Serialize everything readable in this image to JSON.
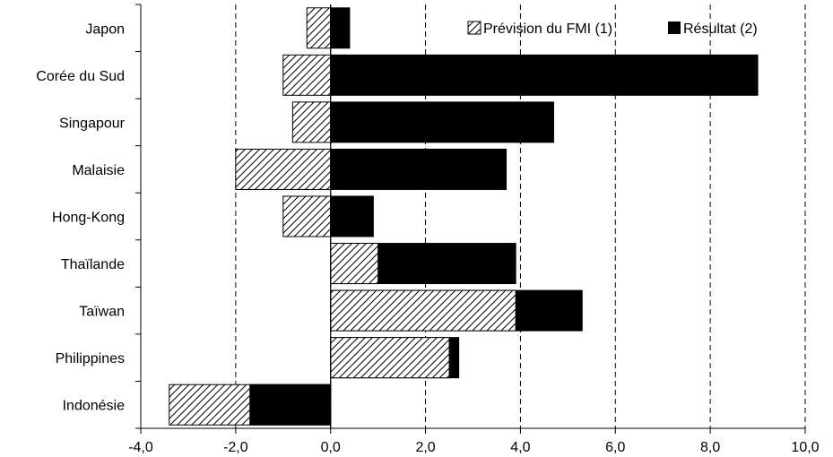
{
  "chart_data": {
    "type": "bar",
    "orientation": "horizontal",
    "categories": [
      "Japon",
      "Corée du Sud",
      "Singapour",
      "Malaisie",
      "Hong-Kong",
      "Thaïlande",
      "Taïwan",
      "Philippines",
      "Indonésie"
    ],
    "series": [
      {
        "name": "Prévision du FMI (1)",
        "pattern": "hatched",
        "values": [
          -0.5,
          -1.0,
          -0.8,
          -2.0,
          -1.0,
          1.0,
          3.9,
          2.5,
          -3.4
        ]
      },
      {
        "name": "Résultat (2)",
        "color": "#000000",
        "values": [
          0.4,
          9.0,
          4.7,
          3.7,
          0.9,
          3.9,
          5.3,
          2.7,
          -1.7
        ]
      }
    ],
    "xlim": [
      -4,
      10
    ],
    "xticks": [
      "-4,0",
      "-2,0",
      "0,0",
      "2,0",
      "4,0",
      "6,0",
      "8,0",
      "10,0"
    ],
    "grid": "vertical dashed",
    "legend_position": "top-right"
  }
}
